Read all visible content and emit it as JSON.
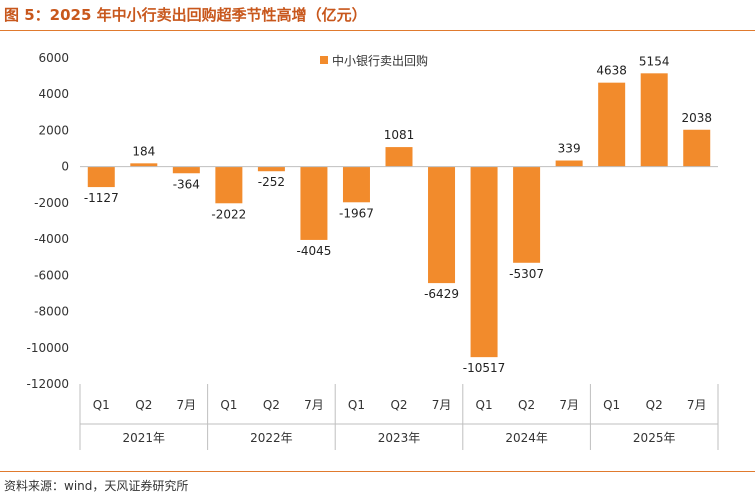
{
  "title": "图 5：2025 年中小行卖出回购超季节性高增（亿元）",
  "source": "资料来源：wind，天风证券研究所",
  "colors": {
    "bar": "#f28b2c",
    "accent": "#c8571c",
    "axis": "#bfbfbf",
    "text": "#333333"
  },
  "chart_data": {
    "type": "bar",
    "title": "",
    "xlabel": "",
    "ylabel": "",
    "ylim": [
      -12000,
      6000
    ],
    "yticks": [
      6000,
      4000,
      2000,
      0,
      -2000,
      -4000,
      -6000,
      -8000,
      -10000,
      -12000
    ],
    "grid": false,
    "legend_position": "top-center",
    "categories": [
      "Q1",
      "Q2",
      "7月",
      "Q1",
      "Q2",
      "7月",
      "Q1",
      "Q2",
      "7月",
      "Q1",
      "Q2",
      "7月",
      "Q1",
      "Q2",
      "7月"
    ],
    "groups": [
      {
        "label": "2021年",
        "span": 3
      },
      {
        "label": "2022年",
        "span": 3
      },
      {
        "label": "2023年",
        "span": 3
      },
      {
        "label": "2024年",
        "span": 3
      },
      {
        "label": "2025年",
        "span": 3
      }
    ],
    "series": [
      {
        "name": "中小银行卖出回购",
        "values": [
          -1127,
          184,
          -364,
          -2022,
          -252,
          -4045,
          -1967,
          1081,
          -6429,
          -10517,
          -5307,
          339,
          4638,
          5154,
          2038
        ]
      }
    ]
  }
}
